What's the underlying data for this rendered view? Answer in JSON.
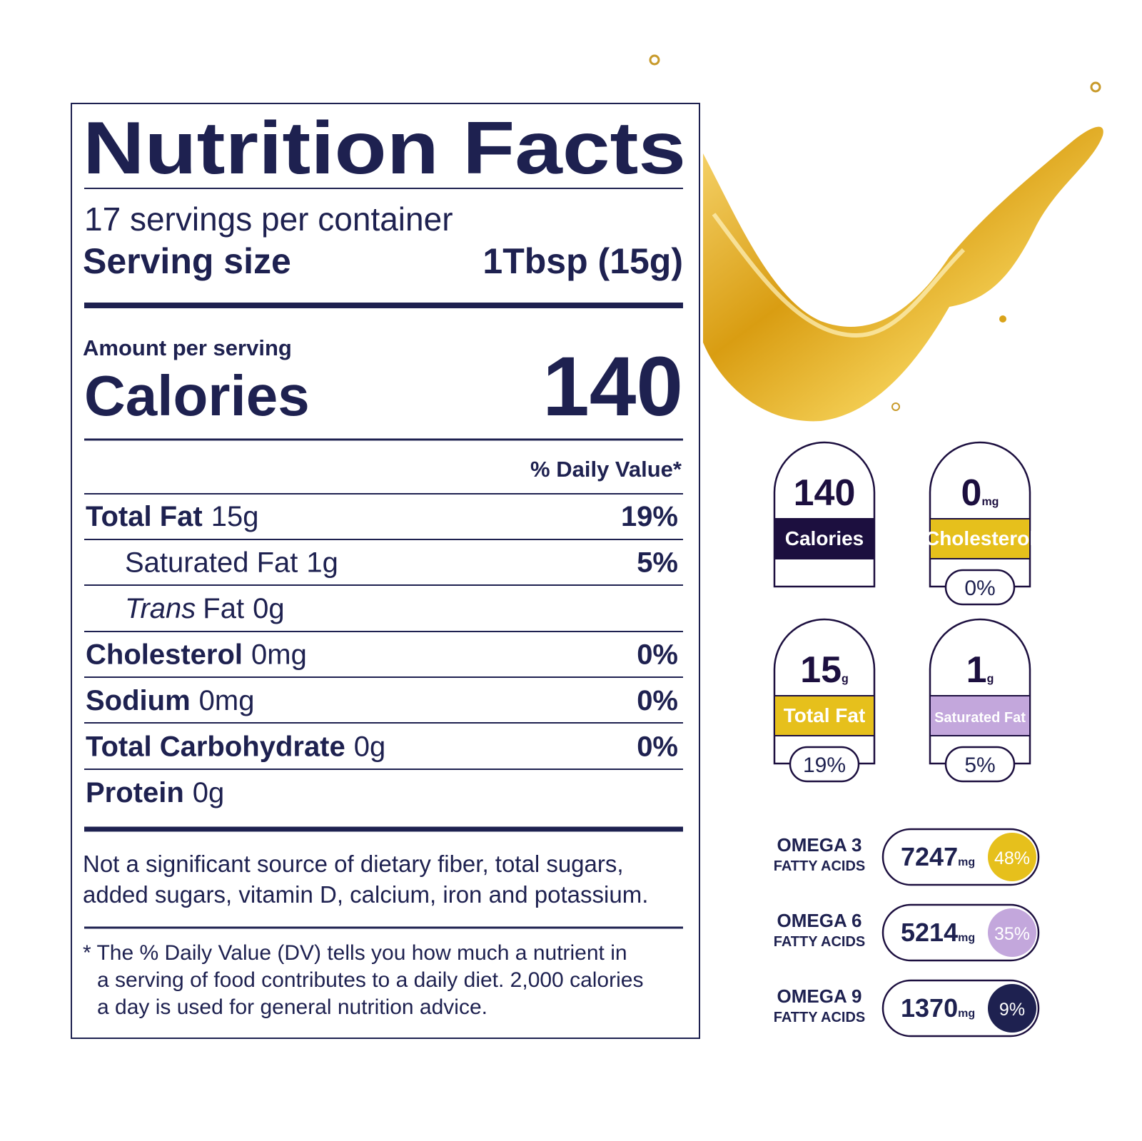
{
  "label": {
    "title": "Nutrition Facts",
    "servings": "17 servings per container",
    "serving_size_label": "Serving size",
    "serving_size_value": "1Tbsp (15g)",
    "amount_per_serving": "Amount per serving",
    "calories_label": "Calories",
    "calories_value": "140",
    "daily_value_header": "% Daily Value*",
    "rows": [
      {
        "name": "Total Fat",
        "amount": "15g",
        "dv": "19%"
      },
      {
        "name": "Saturated Fat",
        "amount": "1g",
        "dv": "5%",
        "indent": true
      },
      {
        "name_italic": "Trans",
        "name": "Fat",
        "amount": "0g",
        "indent": true
      },
      {
        "name": "Cholesterol",
        "amount": "0mg",
        "dv": "0%"
      },
      {
        "name": "Sodium",
        "amount": "0mg",
        "dv": "0%"
      },
      {
        "name": "Total Carbohydrate",
        "amount": "0g",
        "dv": "0%"
      },
      {
        "name": "Protein",
        "amount": "0g"
      }
    ],
    "note": [
      "Not a significant source of dietary fiber, total sugars,",
      "added sugars, vitamin D, calcium, iron and potassium."
    ],
    "footnote": [
      "* The % Daily Value (DV) tells you how much a nutrient in",
      "a serving of food contributes to a daily diet. 2,000 calories",
      "a day is used for general nutrition advice."
    ]
  },
  "badges": [
    {
      "value": "140",
      "label": "Calories",
      "color": "#1c0f3f"
    },
    {
      "value": "0",
      "unit": "mg",
      "label": "Cholesterol",
      "dv": "0%",
      "color": "#e6c01c"
    },
    {
      "value": "15",
      "unit": "g",
      "label": "Total Fat",
      "dv": "19%",
      "color": "#e6c01c"
    },
    {
      "value": "1",
      "unit": "g",
      "label": "Saturated Fat",
      "dv": "5%",
      "color": "#c3a7dc"
    }
  ],
  "omegas": [
    {
      "name": "OMEGA 3",
      "sub": "FATTY ACIDS",
      "value": "7247",
      "unit": "mg",
      "dv": "48%",
      "color": "#e6c01c"
    },
    {
      "name": "OMEGA 6",
      "sub": "FATTY ACIDS",
      "value": "5214",
      "unit": "mg",
      "dv": "35%",
      "color": "#c3a7dc"
    },
    {
      "name": "OMEGA 9",
      "sub": "FATTY ACIDS",
      "value": "1370",
      "unit": "mg",
      "dv": "9%",
      "color": "#1e2150"
    }
  ]
}
